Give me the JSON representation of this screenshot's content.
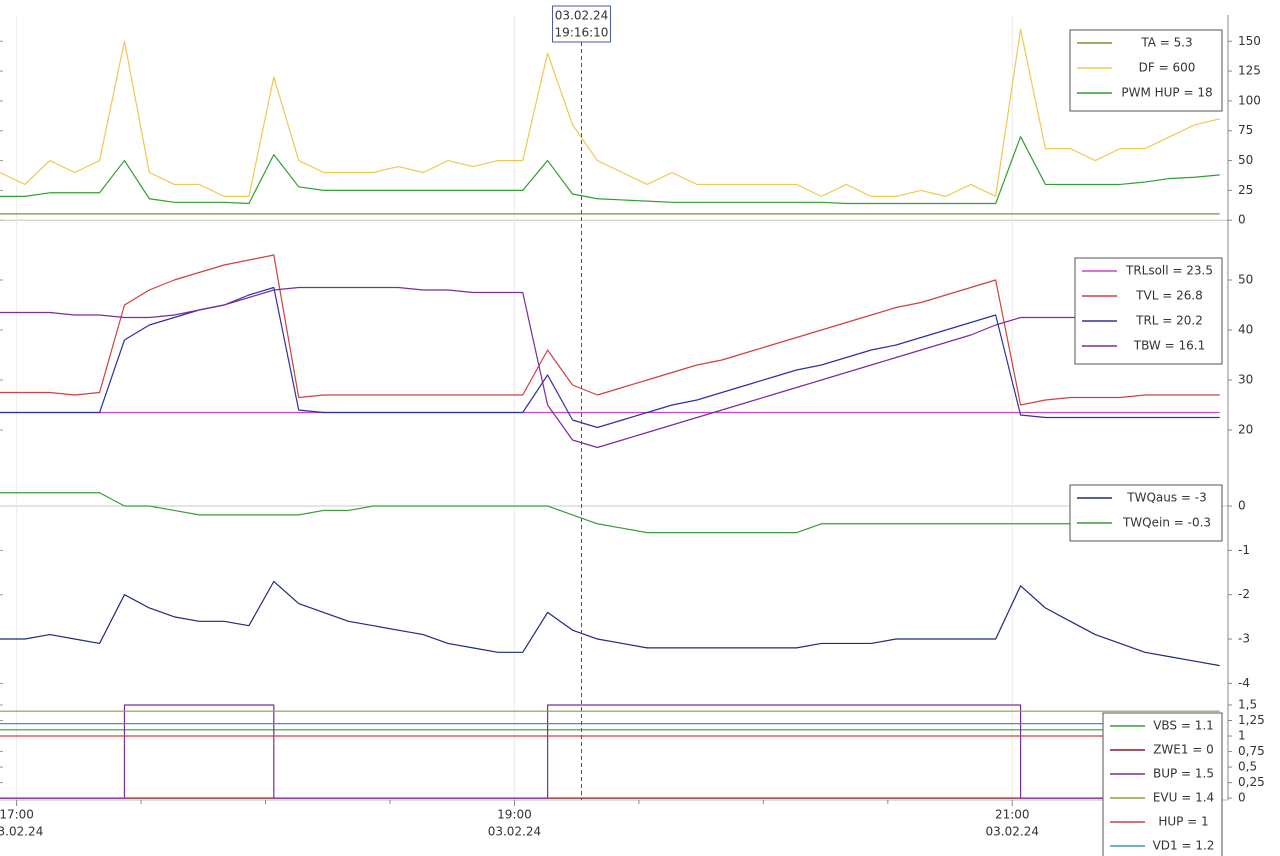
{
  "chart_data": [
    {
      "type": "line",
      "x": [
        "16:56",
        "17:02",
        "17:08",
        "17:14",
        "17:20",
        "17:26",
        "17:32",
        "17:38",
        "17:44",
        "17:50",
        "17:56",
        "18:02",
        "18:08",
        "18:14",
        "18:20",
        "18:26",
        "18:32",
        "18:38",
        "18:44",
        "18:50",
        "18:56",
        "19:02",
        "19:08",
        "19:14",
        "19:20",
        "19:26",
        "19:32",
        "19:38",
        "19:44",
        "19:50",
        "19:56",
        "20:02",
        "20:08",
        "20:14",
        "20:20",
        "20:26",
        "20:32",
        "20:38",
        "20:44",
        "20:50",
        "20:56",
        "21:02",
        "21:08",
        "21:14",
        "21:20",
        "21:26",
        "21:32",
        "21:38",
        "21:44",
        "21:50"
      ],
      "xlim": [
        "16:56",
        "21:52"
      ],
      "ylim": [
        -4,
        172
      ],
      "yticks": [
        0,
        25,
        50,
        75,
        100,
        125,
        150
      ],
      "zero_line": true,
      "legend": "top-right",
      "cursor": {
        "date": "03.02.24",
        "time": "19:16:10"
      },
      "series": [
        {
          "name": "TA = 5.3",
          "color": "#8c8c2a",
          "values": [
            5.3,
            5.3,
            5.3,
            5.3,
            5.3,
            5.3,
            5.3,
            5.3,
            5.3,
            5.3,
            5.3,
            5.3,
            5.3,
            5.3,
            5.3,
            5.3,
            5.3,
            5.3,
            5.3,
            5.3,
            5.3,
            5.3,
            5.3,
            5.3,
            5.3,
            5.3,
            5.3,
            5.3,
            5.3,
            5.3,
            5.3,
            5.3,
            5.3,
            5.3,
            5.3,
            5.3,
            5.3,
            5.3,
            5.3,
            5.3,
            5.3,
            5.3,
            5.3,
            5.3,
            5.3,
            5.3,
            5.3,
            5.3,
            5.3,
            5.3
          ]
        },
        {
          "name": "DF = 600",
          "color": "#f0c850",
          "values": [
            40,
            30,
            50,
            40,
            50,
            150,
            40,
            30,
            30,
            20,
            20,
            120,
            50,
            40,
            40,
            40,
            45,
            40,
            50,
            45,
            50,
            50,
            140,
            80,
            50,
            40,
            30,
            40,
            30,
            30,
            30,
            30,
            30,
            20,
            30,
            20,
            20,
            25,
            20,
            30,
            20,
            160,
            60,
            60,
            50,
            60,
            60,
            70,
            80,
            85
          ]
        },
        {
          "name": "PWM HUP = 18",
          "color": "#2ea02e",
          "values": [
            20,
            20,
            23,
            23,
            23,
            50,
            18,
            15,
            15,
            15,
            14,
            55,
            28,
            25,
            25,
            25,
            25,
            25,
            25,
            25,
            25,
            25,
            50,
            22,
            18,
            17,
            16,
            15,
            15,
            15,
            15,
            15,
            15,
            15,
            14,
            14,
            14,
            14,
            14,
            14,
            14,
            70,
            30,
            30,
            30,
            30,
            32,
            35,
            36,
            38
          ]
        }
      ]
    },
    {
      "type": "line",
      "x": [
        "16:56",
        "17:02",
        "17:08",
        "17:14",
        "17:20",
        "17:26",
        "17:32",
        "17:38",
        "17:44",
        "17:50",
        "17:56",
        "18:02",
        "18:08",
        "18:14",
        "18:20",
        "18:26",
        "18:32",
        "18:38",
        "18:44",
        "18:50",
        "18:56",
        "19:02",
        "19:08",
        "19:14",
        "19:20",
        "19:26",
        "19:32",
        "19:38",
        "19:44",
        "19:50",
        "19:56",
        "20:02",
        "20:08",
        "20:14",
        "20:20",
        "20:26",
        "20:32",
        "20:38",
        "20:44",
        "20:50",
        "20:56",
        "21:02",
        "21:08",
        "21:14",
        "21:20",
        "21:26",
        "21:32",
        "21:38",
        "21:44",
        "21:50"
      ],
      "xlim": [
        "16:56",
        "21:52"
      ],
      "ylim": [
        14,
        58
      ],
      "yticks": [
        20,
        30,
        40,
        50
      ],
      "zero_line": false,
      "legend": "top-right",
      "series": [
        {
          "name": "TRLsoll = 23.5",
          "color": "#cc44cc",
          "values": [
            23.5,
            23.5,
            23.5,
            23.5,
            23.5,
            23.5,
            23.5,
            23.5,
            23.5,
            23.5,
            23.5,
            23.5,
            23.5,
            23.5,
            23.5,
            23.5,
            23.5,
            23.5,
            23.5,
            23.5,
            23.5,
            23.5,
            23.5,
            23.5,
            23.5,
            23.5,
            23.5,
            23.5,
            23.5,
            23.5,
            23.5,
            23.5,
            23.5,
            23.5,
            23.5,
            23.5,
            23.5,
            23.5,
            23.5,
            23.5,
            23.5,
            23.5,
            23.5,
            23.5,
            23.5,
            23.5,
            23.5,
            23.5,
            23.5,
            23.5
          ]
        },
        {
          "name": "TVL = 26.8",
          "color": "#d04040",
          "values": [
            27.5,
            27.5,
            27.5,
            27,
            27.5,
            45,
            48,
            50,
            51.5,
            53,
            54,
            55,
            26.5,
            27,
            27,
            27,
            27,
            27,
            27,
            27,
            27,
            27,
            36,
            29,
            27,
            28.5,
            30,
            31.5,
            33,
            34,
            35.5,
            37,
            38.5,
            40,
            41.5,
            43,
            44.5,
            45.5,
            47,
            48.5,
            50,
            25,
            26,
            26.5,
            26.5,
            26.5,
            27,
            27,
            27,
            27
          ]
        },
        {
          "name": "TRL = 20.2",
          "color": "#3030a0",
          "values": [
            23.5,
            23.5,
            23.5,
            23.5,
            23.5,
            38,
            41,
            42.5,
            44,
            45,
            47,
            48.5,
            24,
            23.5,
            23.5,
            23.5,
            23.5,
            23.5,
            23.5,
            23.5,
            23.5,
            23.5,
            31,
            22,
            20.5,
            22,
            23.5,
            25,
            26,
            27.5,
            29,
            30.5,
            32,
            33,
            34.5,
            36,
            37,
            38.5,
            40,
            41.5,
            43,
            23,
            22.5,
            22.5,
            22.5,
            22.5,
            22.5,
            22.5,
            22.5,
            22.5
          ]
        },
        {
          "name": "TBW = 16.1",
          "color": "#7b2c9b",
          "values": [
            43.5,
            43.5,
            43.5,
            43,
            43,
            42.5,
            42.5,
            43,
            44,
            45,
            46.5,
            48,
            48.5,
            48.5,
            48.5,
            48.5,
            48.5,
            48,
            48,
            47.5,
            47.5,
            47.5,
            25,
            18,
            16.5,
            18,
            19.5,
            21,
            22.5,
            24,
            25.5,
            27,
            28.5,
            30,
            31.5,
            33,
            34.5,
            36,
            37.5,
            39,
            41,
            42.5,
            42.5,
            42.5,
            42.5,
            42,
            42,
            42,
            42,
            42
          ]
        }
      ]
    },
    {
      "type": "line",
      "x": [
        "16:56",
        "17:02",
        "17:08",
        "17:14",
        "17:20",
        "17:26",
        "17:32",
        "17:38",
        "17:44",
        "17:50",
        "17:56",
        "18:02",
        "18:08",
        "18:14",
        "18:20",
        "18:26",
        "18:32",
        "18:38",
        "18:44",
        "18:50",
        "18:56",
        "19:02",
        "19:08",
        "19:14",
        "19:20",
        "19:26",
        "19:32",
        "19:38",
        "19:44",
        "19:50",
        "19:56",
        "20:02",
        "20:08",
        "20:14",
        "20:20",
        "20:26",
        "20:32",
        "20:38",
        "20:44",
        "20:50",
        "20:56",
        "21:02",
        "21:08",
        "21:14",
        "21:20",
        "21:26",
        "21:32",
        "21:38",
        "21:44",
        "21:50"
      ],
      "xlim": [
        "16:56",
        "21:52"
      ],
      "ylim": [
        -4.15,
        0.7
      ],
      "yticks": [
        -4,
        -3,
        -2,
        -1,
        0
      ],
      "zero_line": true,
      "legend": "top-right",
      "series": [
        {
          "name": "TWQaus = -3",
          "color": "#1f2a7a",
          "values": [
            -3,
            -3,
            -2.9,
            -3,
            -3.1,
            -2,
            -2.3,
            -2.5,
            -2.6,
            -2.6,
            -2.7,
            -1.7,
            -2.2,
            -2.4,
            -2.6,
            -2.7,
            -2.8,
            -2.9,
            -3.1,
            -3.2,
            -3.3,
            -3.3,
            -2.4,
            -2.8,
            -3,
            -3.1,
            -3.2,
            -3.2,
            -3.2,
            -3.2,
            -3.2,
            -3.2,
            -3.2,
            -3.1,
            -3.1,
            -3.1,
            -3,
            -3,
            -3,
            -3,
            -3,
            -1.8,
            -2.3,
            -2.6,
            -2.9,
            -3.1,
            -3.3,
            -3.4,
            -3.5,
            -3.6
          ]
        },
        {
          "name": "TWQein = -0.3",
          "color": "#3a9a3a",
          "values": [
            0.3,
            0.3,
            0.3,
            0.3,
            0.3,
            0,
            0,
            -0.1,
            -0.2,
            -0.2,
            -0.2,
            -0.2,
            -0.2,
            -0.1,
            -0.1,
            0,
            0,
            0,
            0,
            0,
            0,
            0,
            0,
            -0.2,
            -0.4,
            -0.5,
            -0.6,
            -0.6,
            -0.6,
            -0.6,
            -0.6,
            -0.6,
            -0.6,
            -0.4,
            -0.4,
            -0.4,
            -0.4,
            -0.4,
            -0.4,
            -0.4,
            -0.4,
            -0.4,
            -0.4,
            -0.4,
            -0.4,
            -0.4,
            -0.4,
            -0.4,
            -0.4,
            -0.4
          ]
        }
      ]
    },
    {
      "type": "line",
      "x": [
        "16:56",
        "17:02",
        "17:08",
        "17:14",
        "17:20",
        "17:26",
        "17:32",
        "17:38",
        "17:44",
        "17:50",
        "17:56",
        "18:02",
        "18:08",
        "18:14",
        "18:20",
        "18:26",
        "18:32",
        "18:38",
        "18:44",
        "18:50",
        "18:56",
        "19:02",
        "19:08",
        "19:14",
        "19:20",
        "19:26",
        "19:32",
        "19:38",
        "19:44",
        "19:50",
        "19:56",
        "20:02",
        "20:08",
        "20:14",
        "20:20",
        "20:26",
        "20:32",
        "20:38",
        "20:44",
        "20:50",
        "20:56",
        "21:02",
        "21:08",
        "21:14",
        "21:20",
        "21:26",
        "21:32",
        "21:38",
        "21:44",
        "21:50"
      ],
      "xlim": [
        "16:56",
        "21:52"
      ],
      "ylim": [
        -0.03,
        1.58
      ],
      "yticks": [
        0,
        {
          "value": 0.25,
          "label": "0,25"
        },
        {
          "value": 0.5,
          "label": "0,5"
        },
        {
          "value": 0.75,
          "label": "0,75"
        },
        1,
        {
          "value": 1.25,
          "label": "1,25"
        },
        {
          "value": 1.5,
          "label": "1,5"
        }
      ],
      "zero_line": false,
      "legend": "top-right",
      "xticks": [
        {
          "time": "17:00",
          "date": "03.02.24"
        },
        {
          "time": "19:00",
          "date": "03.02.24"
        },
        {
          "time": "21:00",
          "date": "03.02.24"
        }
      ],
      "xminorticks": [
        "17:30",
        "18:00",
        "18:30",
        "19:30",
        "20:00",
        "20:30",
        "21:30"
      ],
      "series": [
        {
          "name": "VBS = 1.1",
          "color": "#3a9a3a",
          "values": [
            1.1,
            1.1,
            1.1,
            1.1,
            1.1,
            1.1,
            1.1,
            1.1,
            1.1,
            1.1,
            1.1,
            1.1,
            1.1,
            1.1,
            1.1,
            1.1,
            1.1,
            1.1,
            1.1,
            1.1,
            1.1,
            1.1,
            1.1,
            1.1,
            1.1,
            1.1,
            1.1,
            1.1,
            1.1,
            1.1,
            1.1,
            1.1,
            1.1,
            1.1,
            1.1,
            1.1,
            1.1,
            1.1,
            1.1,
            1.1,
            1.1,
            1.1,
            1.1,
            1.1,
            1.1,
            1.1,
            1.1,
            1.1,
            1.1,
            1.1
          ]
        },
        {
          "name": "ZWE1 = 0",
          "color": "#8b1a2a",
          "values": [
            0,
            0,
            0,
            0,
            0,
            0,
            0,
            0,
            0,
            0,
            0,
            0,
            0,
            0,
            0,
            0,
            0,
            0,
            0,
            0,
            0,
            0,
            0,
            0,
            0,
            0,
            0,
            0,
            0,
            0,
            0,
            0,
            0,
            0,
            0,
            0,
            0,
            0,
            0,
            0,
            0,
            0,
            0,
            0,
            0,
            0,
            0,
            0,
            0,
            0
          ]
        },
        {
          "name": "BUP = 1.5",
          "color": "#7b2c9b",
          "step": true,
          "values": [
            0,
            0,
            0,
            0,
            0,
            1.5,
            1.5,
            1.5,
            1.5,
            1.5,
            1.5,
            0,
            0,
            0,
            0,
            0,
            0,
            0,
            0,
            0,
            0,
            0,
            1.5,
            1.5,
            1.5,
            1.5,
            1.5,
            1.5,
            1.5,
            1.5,
            1.5,
            1.5,
            1.5,
            1.5,
            1.5,
            1.5,
            1.5,
            1.5,
            1.5,
            1.5,
            1.5,
            0,
            0,
            0,
            0,
            0,
            0,
            0,
            0,
            0
          ]
        },
        {
          "name": "EVU = 1.4",
          "color": "#9a9a3a",
          "values": [
            1.4,
            1.4,
            1.4,
            1.4,
            1.4,
            1.4,
            1.4,
            1.4,
            1.4,
            1.4,
            1.4,
            1.4,
            1.4,
            1.4,
            1.4,
            1.4,
            1.4,
            1.4,
            1.4,
            1.4,
            1.4,
            1.4,
            1.4,
            1.4,
            1.4,
            1.4,
            1.4,
            1.4,
            1.4,
            1.4,
            1.4,
            1.4,
            1.4,
            1.4,
            1.4,
            1.4,
            1.4,
            1.4,
            1.4,
            1.4,
            1.4,
            1.4,
            1.4,
            1.4,
            1.4,
            1.4,
            1.4,
            1.4,
            1.4,
            1.4
          ]
        },
        {
          "name": "HUP = 1",
          "color": "#d04040",
          "values": [
            1,
            1,
            1,
            1,
            1,
            1,
            1,
            1,
            1,
            1,
            1,
            1,
            1,
            1,
            1,
            1,
            1,
            1,
            1,
            1,
            1,
            1,
            1,
            1,
            1,
            1,
            1,
            1,
            1,
            1,
            1,
            1,
            1,
            1,
            1,
            1,
            1,
            1,
            1,
            1,
            1,
            1,
            1,
            1,
            1,
            1,
            1,
            1,
            1,
            1
          ]
        },
        {
          "name": "VD1 = 1.2",
          "color": "#3a9aaa",
          "values": [
            1.2,
            1.2,
            1.2,
            1.2,
            1.2,
            1.2,
            1.2,
            1.2,
            1.2,
            1.2,
            1.2,
            1.2,
            1.2,
            1.2,
            1.2,
            1.2,
            1.2,
            1.2,
            1.2,
            1.2,
            1.2,
            1.2,
            1.2,
            1.2,
            1.2,
            1.2,
            1.2,
            1.2,
            1.2,
            1.2,
            1.2,
            1.2,
            1.2,
            1.2,
            1.2,
            1.2,
            1.2,
            1.2,
            1.2,
            1.2,
            1.2,
            1.2,
            1.2,
            1.2,
            1.2,
            1.2,
            1.2,
            1.2,
            1.2,
            1.2
          ]
        }
      ]
    }
  ]
}
